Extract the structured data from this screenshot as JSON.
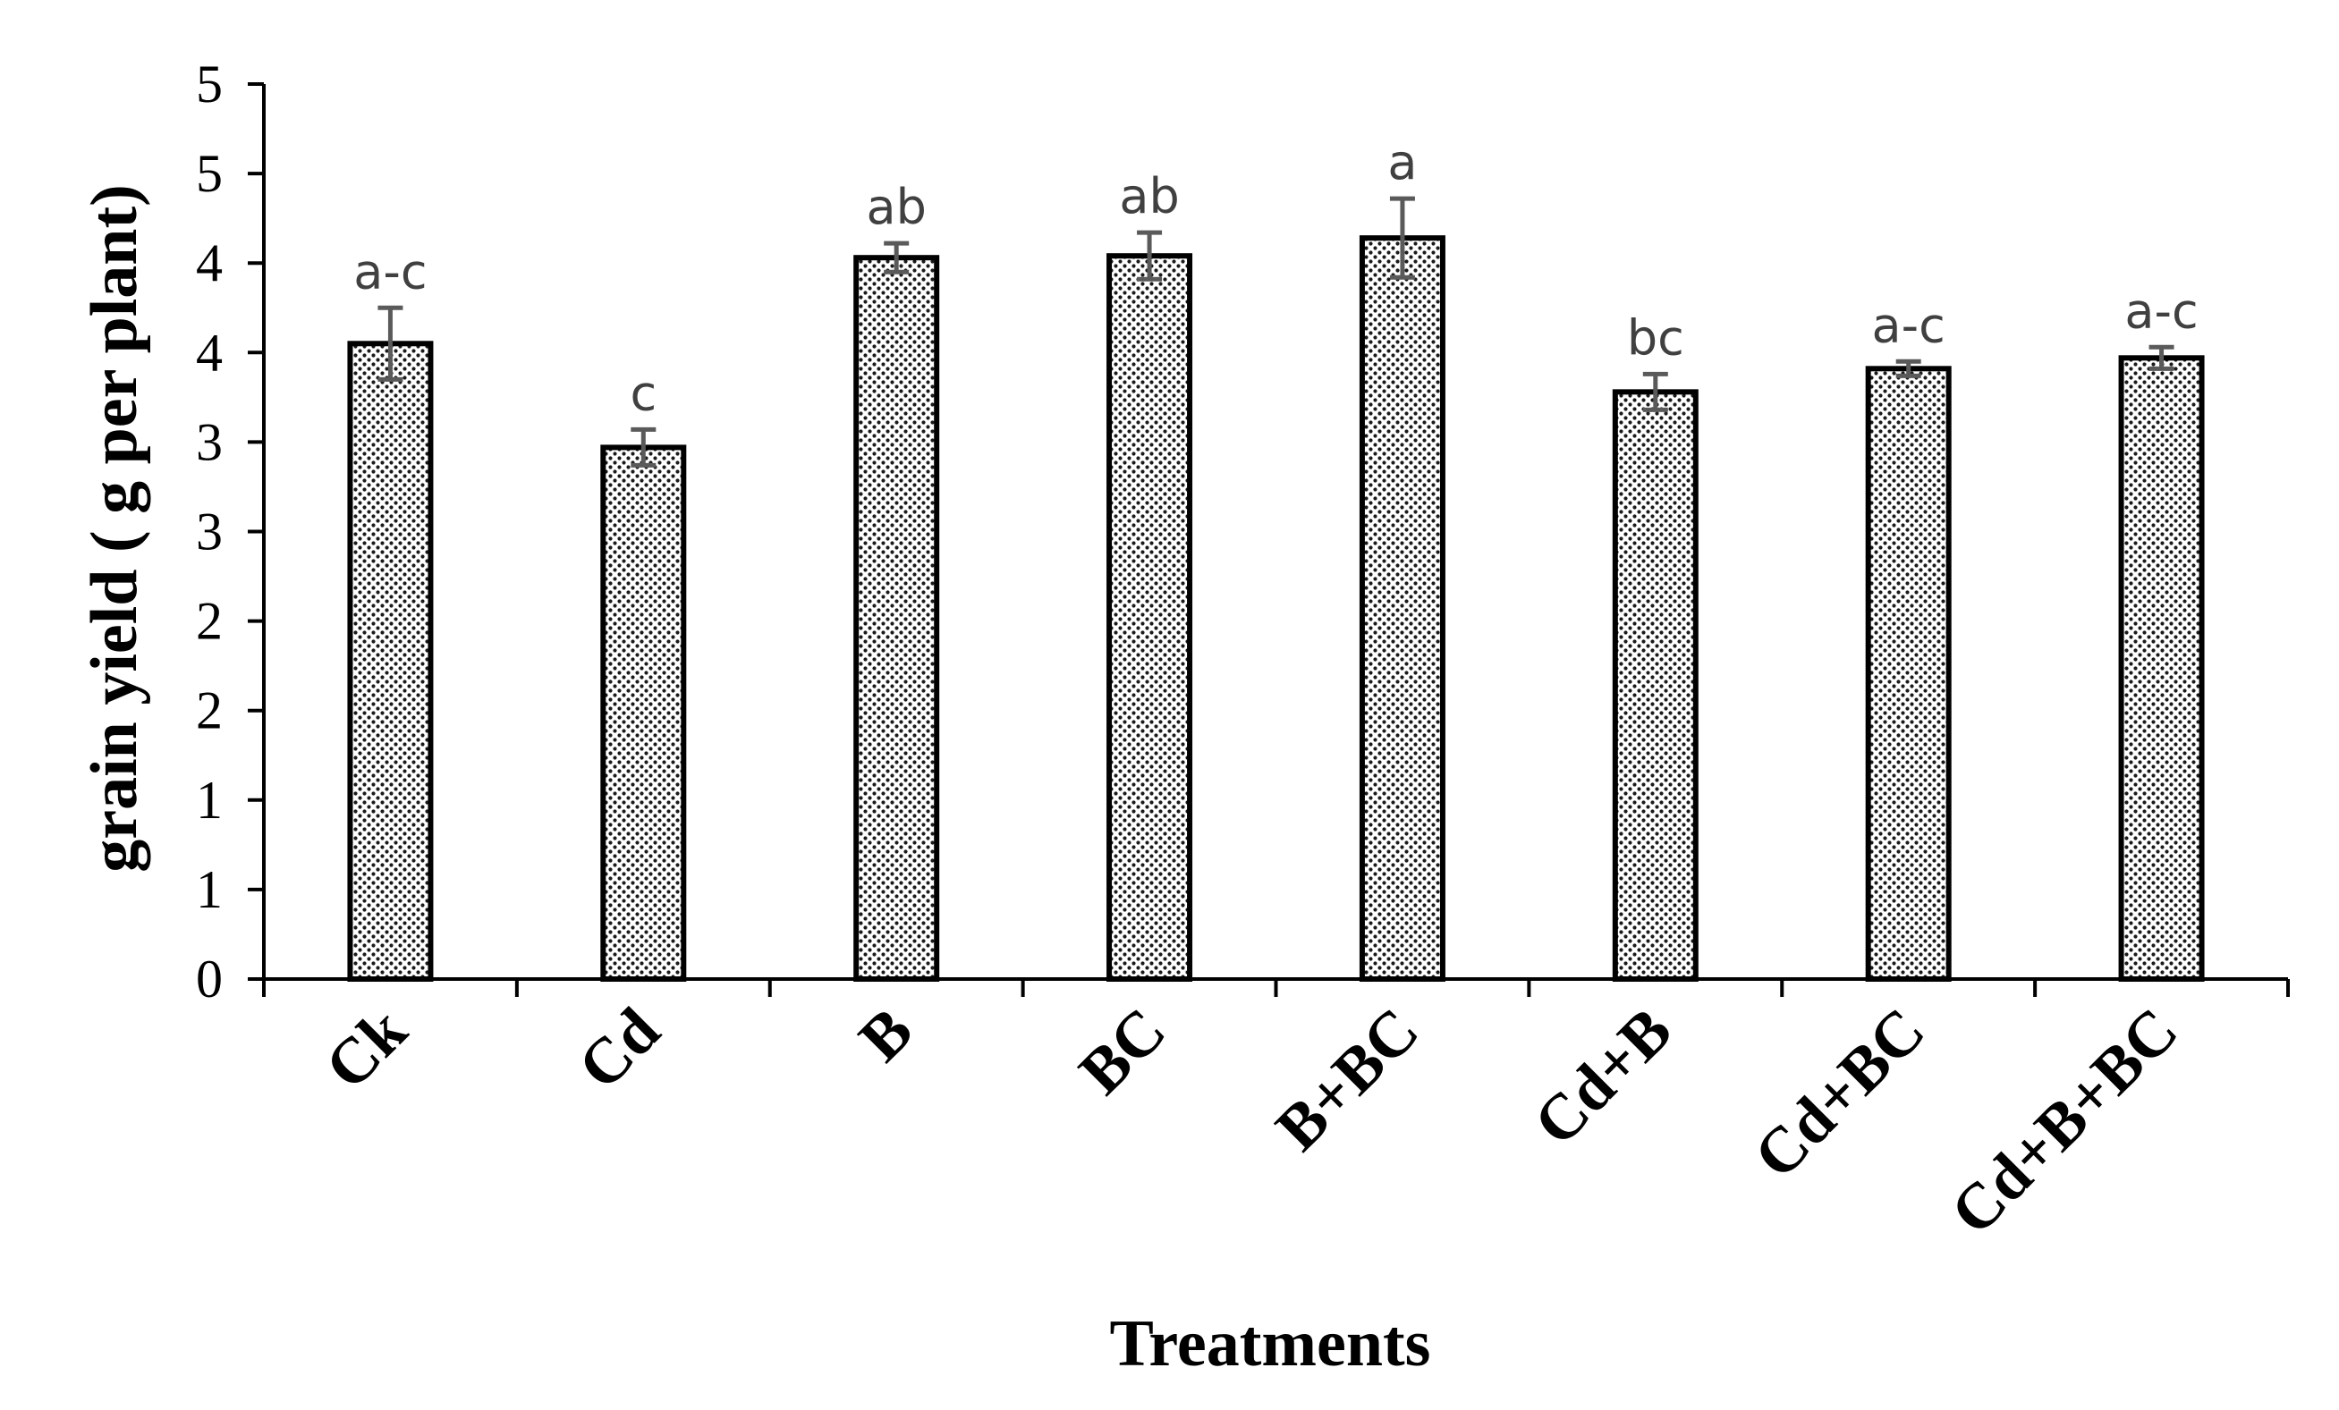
{
  "chart_data": {
    "type": "bar",
    "title": "",
    "xlabel": "Treatments",
    "ylabel": "grain yield ( g per plant)",
    "categories": [
      "Ck",
      "Cd",
      "B",
      "BC",
      "B+BC",
      "Cd+B",
      "Cd+BC",
      "Cd+B+BC"
    ],
    "values": [
      3.55,
      2.97,
      4.03,
      4.04,
      4.14,
      3.28,
      3.41,
      3.47
    ],
    "error": [
      0.2,
      0.1,
      0.08,
      0.13,
      0.22,
      0.1,
      0.04,
      0.06
    ],
    "data_labels": [
      "a-c",
      "c",
      "ab",
      "ab",
      "a",
      "bc",
      "a-c",
      "a-c"
    ],
    "yaxis_tick_labels": [
      "0",
      "1",
      "1",
      "2",
      "2",
      "3",
      "3",
      "4",
      "4",
      "5",
      "5"
    ],
    "ylim": [
      0,
      5
    ],
    "grid": false,
    "legend": "none",
    "colors": {
      "bar_fill_bg": "#ffffff",
      "bar_dots": "#1a1a1a",
      "bar_border": "#000000",
      "error_bar": "#5a5a5a",
      "data_label": "#404040",
      "axis": "#000000"
    }
  }
}
